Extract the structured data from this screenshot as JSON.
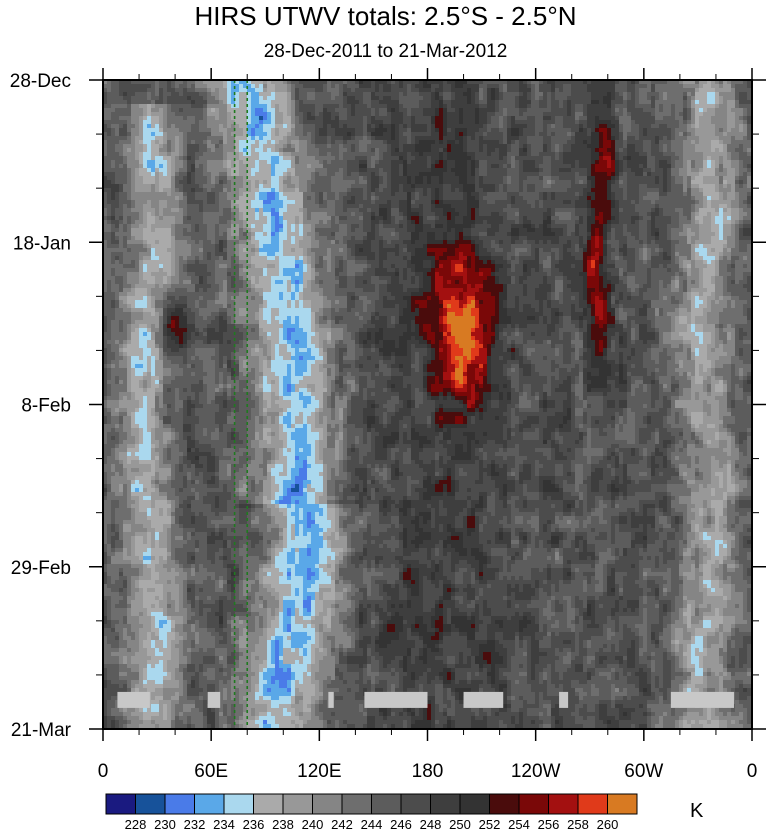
{
  "chart_data": {
    "type": "heatmap",
    "title": "HIRS UTWV totals: 2.5°S - 2.5°N",
    "subtitle": "28-Dec-2011 to 21-Mar-2012",
    "unit": "K",
    "x_ticks": [
      {
        "label": "0",
        "lon": 0
      },
      {
        "label": "60E",
        "lon": 60
      },
      {
        "label": "120E",
        "lon": 120
      },
      {
        "label": "180",
        "lon": 180
      },
      {
        "label": "120W",
        "lon": 240
      },
      {
        "label": "60W",
        "lon": 300
      },
      {
        "label": "0",
        "lon": 360
      }
    ],
    "xlim": [
      0,
      360
    ],
    "y_ticks": [
      {
        "label": "28-Dec",
        "day": 0
      },
      {
        "label": "18-Jan",
        "day": 21
      },
      {
        "label": "8-Feb",
        "day": 42
      },
      {
        "label": "29-Feb",
        "day": 63
      },
      {
        "label": "21-Mar",
        "day": 84
      }
    ],
    "ylim": [
      0,
      84
    ],
    "levels": [
      228,
      230,
      232,
      234,
      236,
      238,
      240,
      242,
      244,
      246,
      248,
      250,
      252,
      254,
      256,
      258,
      260
    ],
    "colors": [
      "#1a1a80",
      "#17529a",
      "#4a7be8",
      "#5aa8e8",
      "#aad8ee",
      "#aaaaaa",
      "#989898",
      "#858585",
      "#6e6e6e",
      "#5c5c5c",
      "#4c4c4c",
      "#3e3e3e",
      "#333333",
      "#4a0c0c",
      "#7a0808",
      "#a31010",
      "#e03a1a",
      "#d87a22"
    ],
    "grid": false,
    "reference_lines_lon": [
      73,
      80
    ],
    "features": [
      {
        "desc": "cold convective band",
        "lon": 25,
        "day_from": 5,
        "day_to": 84,
        "value": 234
      },
      {
        "desc": "cold convective band",
        "lon": 100,
        "day_from": 0,
        "day_to": 84,
        "value": 232
      },
      {
        "desc": "warm dry region",
        "lon": 200,
        "day_from": 22,
        "day_to": 45,
        "value": 258
      },
      {
        "desc": "warm dry band",
        "lon": 275,
        "day_from": 0,
        "day_to": 42,
        "value": 256
      },
      {
        "desc": "cold band",
        "lon": 335,
        "day_from": 0,
        "day_to": 84,
        "value": 238
      }
    ]
  },
  "colorbar": {
    "labels": [
      "228",
      "230",
      "232",
      "234",
      "236",
      "238",
      "240",
      "242",
      "244",
      "246",
      "248",
      "250",
      "252",
      "254",
      "256",
      "258",
      "260"
    ]
  }
}
